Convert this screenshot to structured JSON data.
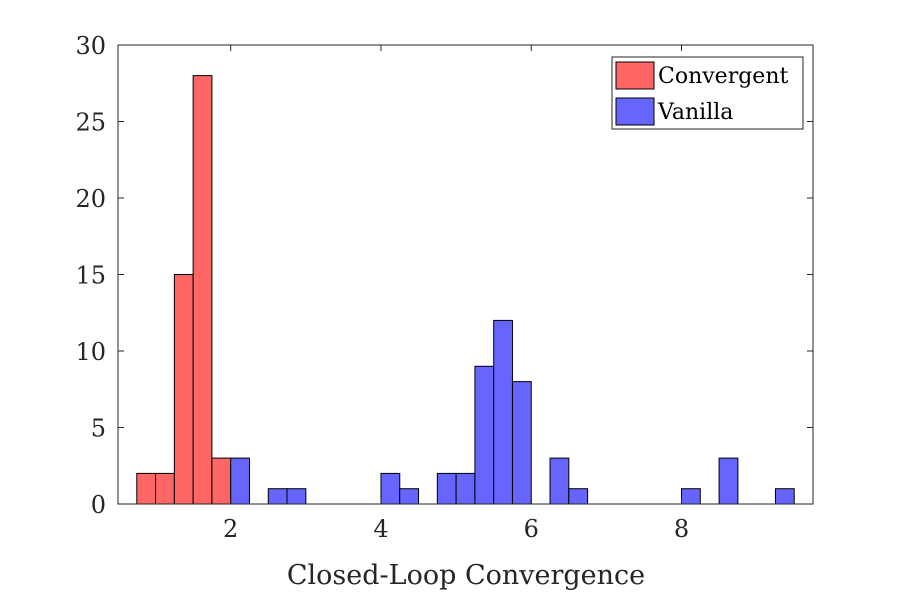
{
  "chart_data": {
    "type": "bar",
    "subtype": "histogram",
    "title": "",
    "xlabel": "Closed-Loop Convergence",
    "ylabel": "",
    "xlim": [
      0.5,
      9.75
    ],
    "ylim": [
      0,
      30
    ],
    "xticks": [
      2,
      4,
      6,
      8
    ],
    "yticks": [
      0,
      5,
      10,
      15,
      20,
      25,
      30
    ],
    "grid": false,
    "legend_position": "top-right",
    "bin_width": 0.25,
    "series": [
      {
        "name": "Convergent",
        "color": "#ff6666",
        "bins": [
          {
            "x0": 0.75,
            "x1": 1.0,
            "count": 2
          },
          {
            "x0": 1.0,
            "x1": 1.25,
            "count": 2
          },
          {
            "x0": 1.25,
            "x1": 1.5,
            "count": 15
          },
          {
            "x0": 1.5,
            "x1": 1.75,
            "count": 28
          },
          {
            "x0": 1.75,
            "x1": 2.0,
            "count": 3
          }
        ]
      },
      {
        "name": "Vanilla",
        "color": "#6666ff",
        "bins": [
          {
            "x0": 2.0,
            "x1": 2.25,
            "count": 3
          },
          {
            "x0": 2.5,
            "x1": 2.75,
            "count": 1
          },
          {
            "x0": 2.75,
            "x1": 3.0,
            "count": 1
          },
          {
            "x0": 4.0,
            "x1": 4.25,
            "count": 2
          },
          {
            "x0": 4.25,
            "x1": 4.5,
            "count": 1
          },
          {
            "x0": 4.75,
            "x1": 5.0,
            "count": 2
          },
          {
            "x0": 5.0,
            "x1": 5.25,
            "count": 2
          },
          {
            "x0": 5.25,
            "x1": 5.5,
            "count": 9
          },
          {
            "x0": 5.5,
            "x1": 5.75,
            "count": 12
          },
          {
            "x0": 5.75,
            "x1": 6.0,
            "count": 8
          },
          {
            "x0": 6.25,
            "x1": 6.5,
            "count": 3
          },
          {
            "x0": 6.5,
            "x1": 6.75,
            "count": 1
          },
          {
            "x0": 8.0,
            "x1": 8.25,
            "count": 1
          },
          {
            "x0": 8.5,
            "x1": 8.75,
            "count": 3
          },
          {
            "x0": 9.25,
            "x1": 9.5,
            "count": 1
          }
        ]
      }
    ]
  }
}
